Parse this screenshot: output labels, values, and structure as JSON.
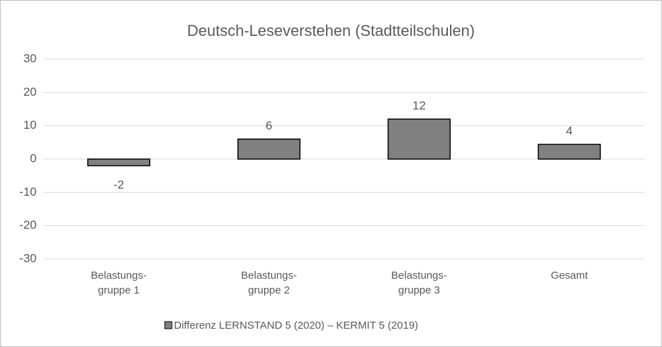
{
  "chart_data": {
    "type": "bar",
    "title": "Deutsch-Leseverstehen (Stadtteilschulen)",
    "categories": [
      "Belastungs-\ngruppe 1",
      "Belastungs-\ngruppe 2",
      "Belastungs-\ngruppe 3",
      "Gesamt"
    ],
    "series": [
      {
        "name": "Differenz LERNSTAND 5 (2020) – KERMIT 5 (2019)",
        "color": "#808080",
        "values": [
          -2,
          6,
          12,
          4.4
        ],
        "value_labels": [
          "-2",
          "6",
          "12",
          "4"
        ]
      }
    ],
    "ylim": [
      -30,
      30
    ],
    "yticks": [
      -30,
      -20,
      -10,
      0,
      10,
      20,
      30
    ],
    "grid": true,
    "legend": "bottom"
  }
}
